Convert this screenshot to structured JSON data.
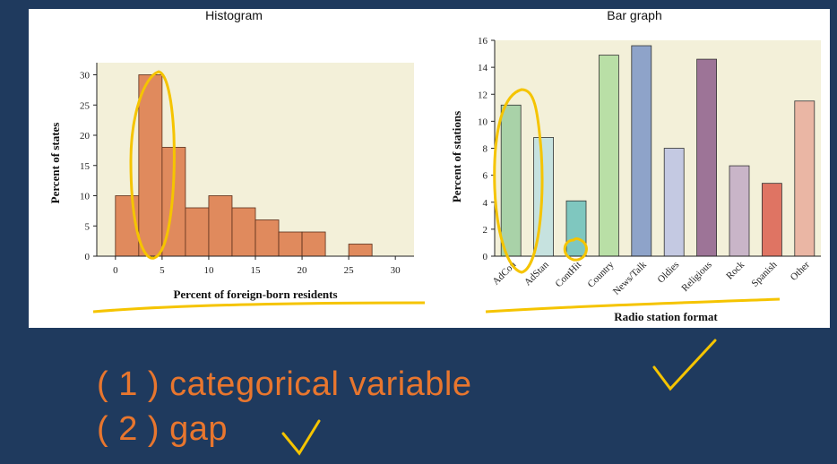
{
  "notes": {
    "item1": "( 1 ) categorical variable",
    "item2": "( 2 ) gap"
  },
  "colors": {
    "background": "#1f3a5e",
    "panel": "#ffffff",
    "plot_area": "#f3f0d9",
    "histogram_bar": "#e08a5d",
    "annotation": "#f5c400",
    "note_text": "#e8762e"
  },
  "chart_data": [
    {
      "type": "bar",
      "title": "Histogram",
      "xlabel": "Percent of foreign-born residents",
      "ylabel": "Percent of states",
      "bins": [
        [
          0,
          2.5
        ],
        [
          2.5,
          5
        ],
        [
          5,
          7.5
        ],
        [
          7.5,
          10
        ],
        [
          10,
          12.5
        ],
        [
          12.5,
          15
        ],
        [
          15,
          17.5
        ],
        [
          17.5,
          20
        ],
        [
          20,
          22.5
        ],
        [
          22.5,
          25
        ],
        [
          25,
          27.5
        ]
      ],
      "values": [
        10,
        30,
        18,
        8,
        10,
        8,
        6,
        4,
        4,
        0,
        2
      ],
      "xlim": [
        -2,
        32
      ],
      "ylim": [
        0,
        32
      ],
      "xticks": [
        0,
        5,
        10,
        15,
        20,
        25,
        30
      ],
      "yticks": [
        0,
        5,
        10,
        15,
        20,
        25,
        30
      ],
      "grid": false
    },
    {
      "type": "bar",
      "title": "Bar graph",
      "xlabel": "Radio station format",
      "ylabel": "Percent of stations",
      "categories": [
        "AdCon",
        "AdStan",
        "ContHit",
        "Country",
        "News/Talk",
        "Oldies",
        "Religious",
        "Rock",
        "Spanish",
        "Other"
      ],
      "values": [
        11.2,
        8.8,
        4.1,
        14.9,
        15.6,
        8.0,
        14.6,
        6.7,
        5.4,
        11.5
      ],
      "bar_colors": [
        "#a9d2a8",
        "#c6e2df",
        "#7fc7bf",
        "#b9dfa6",
        "#8ea3c9",
        "#c4c9e2",
        "#9d7497",
        "#c9b5c8",
        "#df7463",
        "#eab6a4"
      ],
      "ylim": [
        0,
        16
      ],
      "yticks": [
        0,
        2,
        4,
        6,
        8,
        10,
        12,
        14,
        16
      ],
      "grid": false
    }
  ]
}
